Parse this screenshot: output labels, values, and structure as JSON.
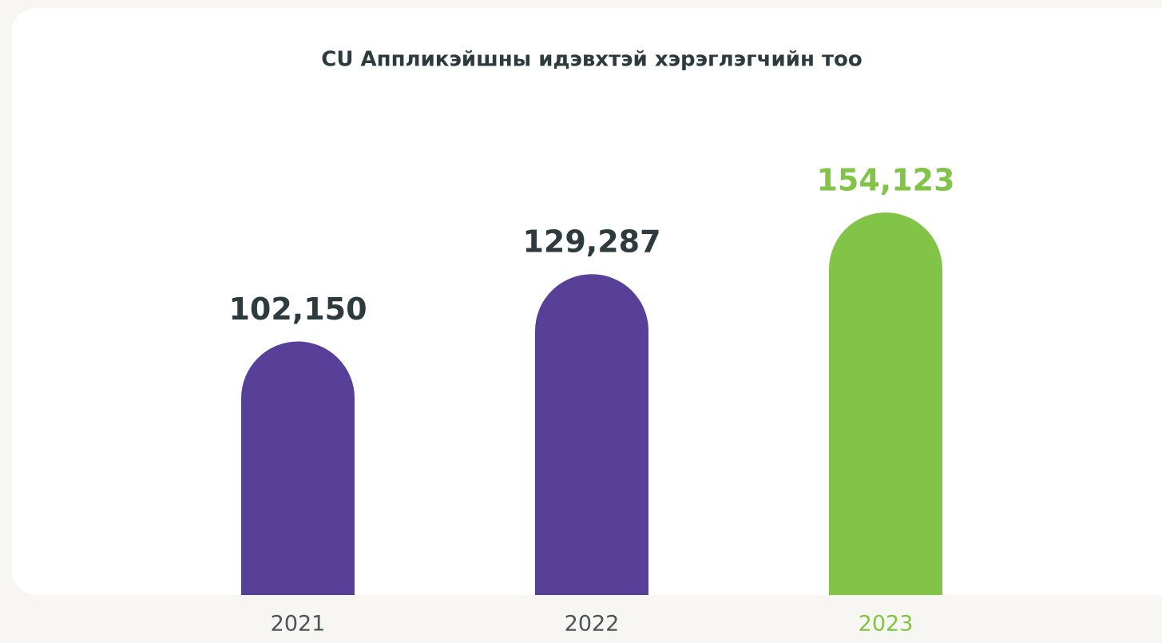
{
  "chart_data": {
    "type": "bar",
    "title": "CU Аппликэйшны идэвхтэй хэрэглэгчийн тоо",
    "categories": [
      "2021",
      "2022",
      "2023"
    ],
    "values": [
      102150,
      129287,
      154123
    ],
    "value_labels": [
      "102,150",
      "129,287",
      "154,123"
    ],
    "colors": [
      "#583f98",
      "#583f98",
      "#82c447"
    ],
    "label_colors": [
      "#2d3b3f",
      "#2d3b3f",
      "#82c447"
    ]
  }
}
